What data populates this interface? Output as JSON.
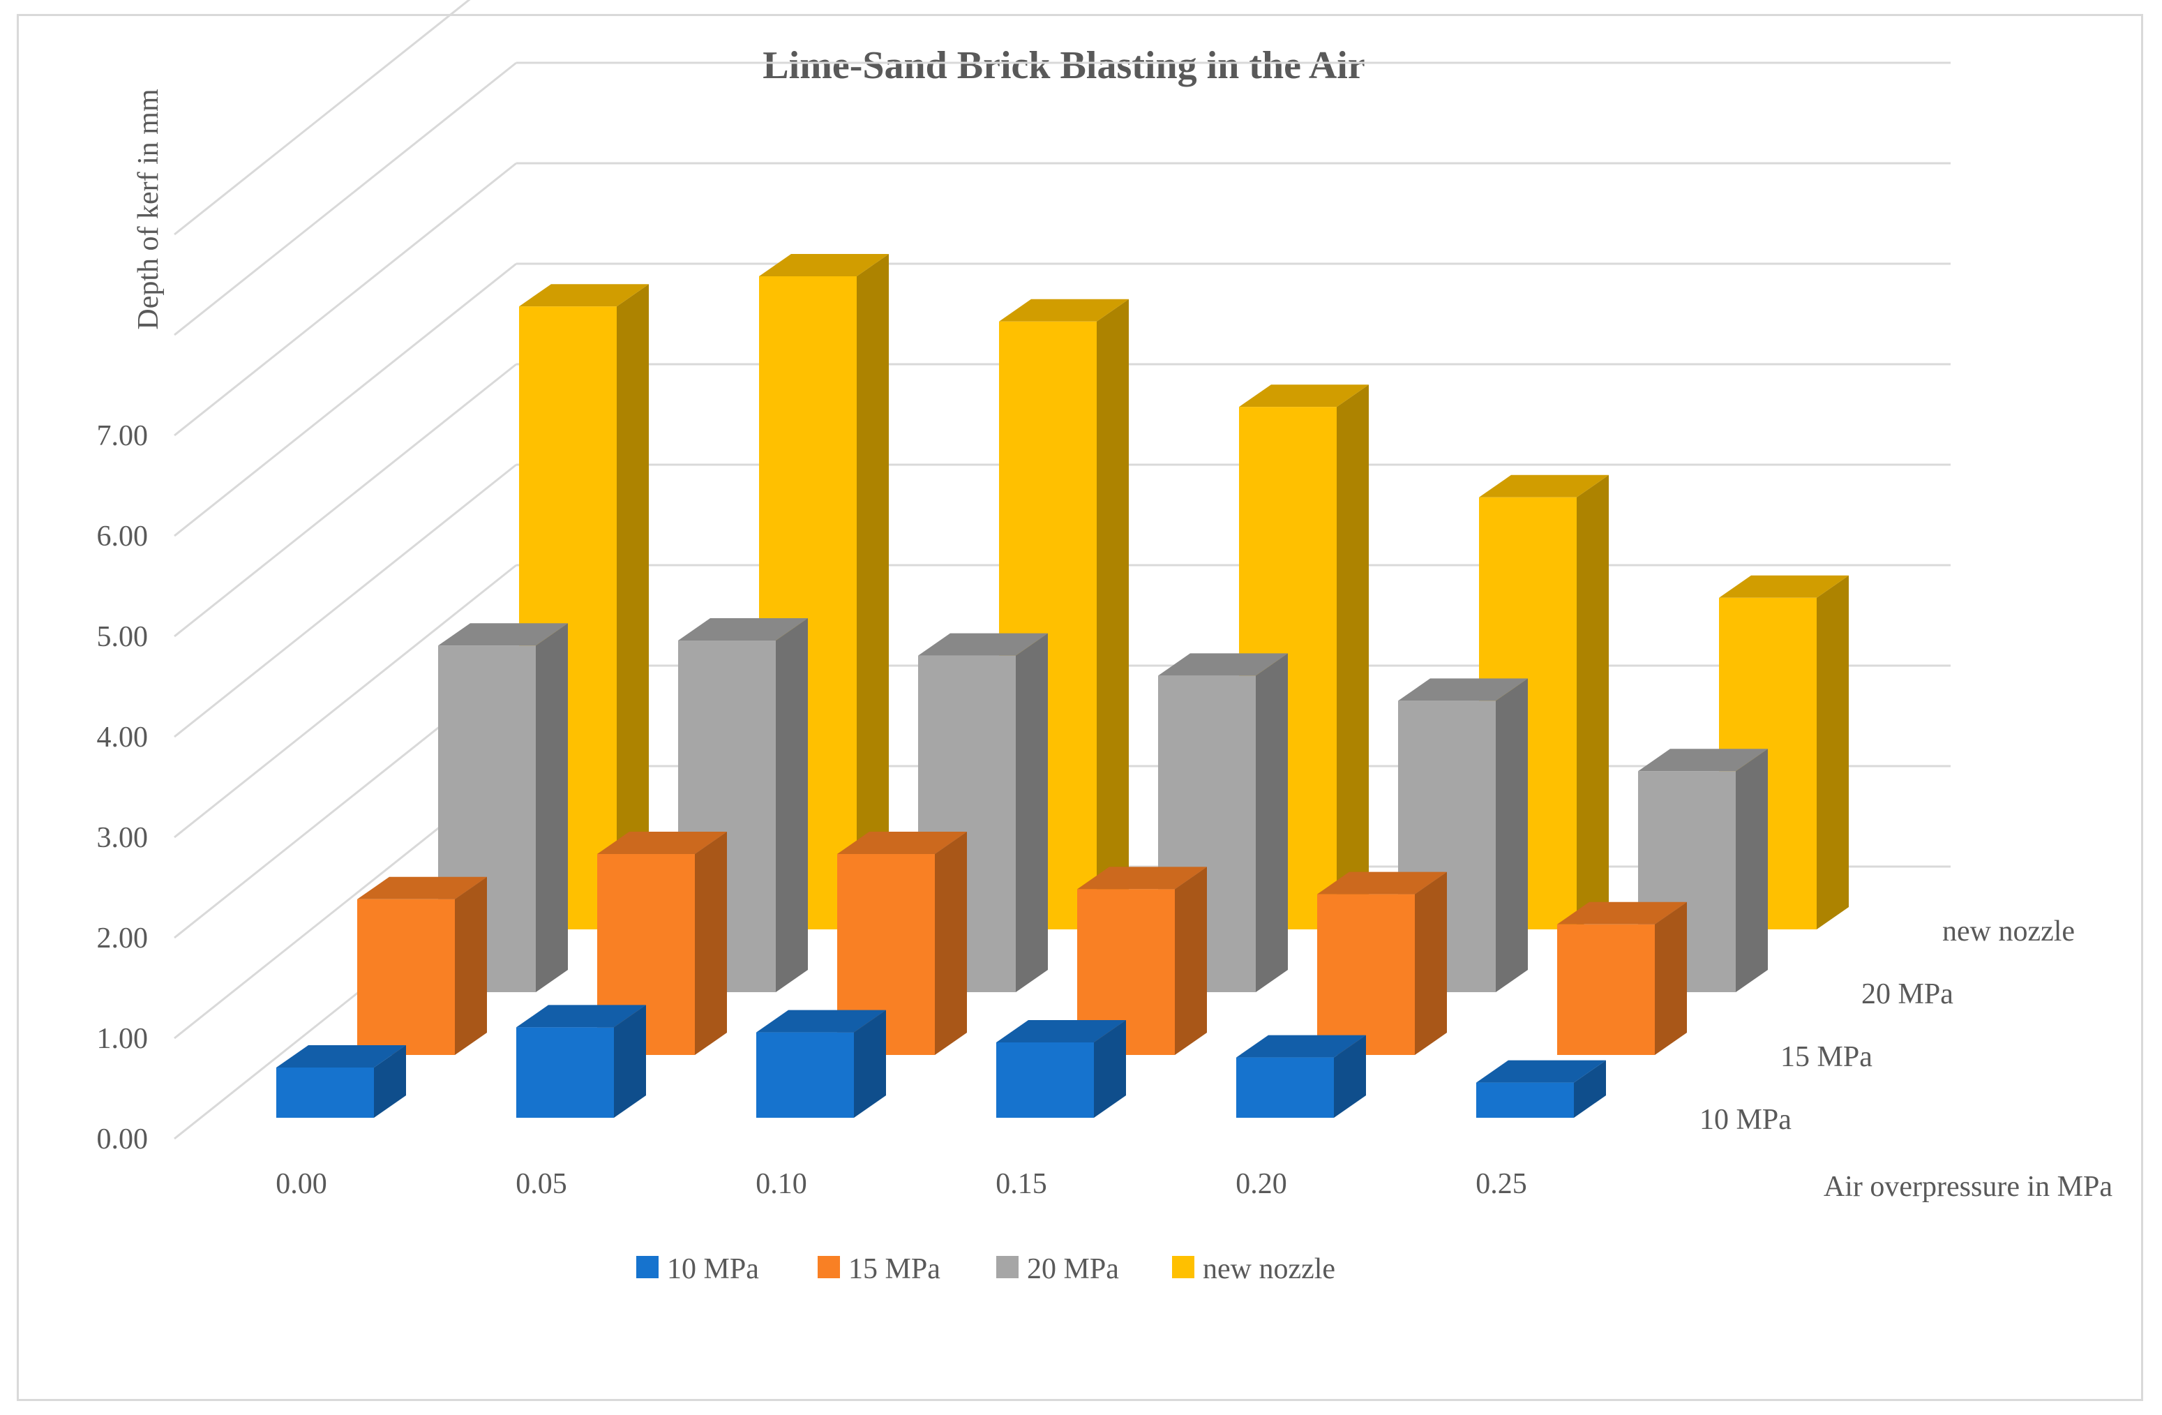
{
  "chart_data": {
    "type": "bar",
    "subtype": "3d-column",
    "title": "Lime-Sand Brick Blasting in the Air",
    "xlabel": "Air overpressure in MPa",
    "ylabel": "Depth of kerf in mm",
    "categories": [
      "0.00",
      "0.05",
      "0.10",
      "0.15",
      "0.20",
      "0.25"
    ],
    "y_ticks": [
      "0.00",
      "1.00",
      "2.00",
      "3.00",
      "4.00",
      "5.00",
      "6.00",
      "7.00"
    ],
    "ylim": [
      0,
      10
    ],
    "grid": true,
    "legend_position": "bottom",
    "series": [
      {
        "name": "10 MPa",
        "values": [
          0.5,
          0.9,
          0.85,
          0.75,
          0.6,
          0.35
        ],
        "color": "#1673CE"
      },
      {
        "name": "15 MPa",
        "values": [
          1.55,
          2.0,
          2.0,
          1.65,
          1.6,
          1.3
        ],
        "color": "#F98024"
      },
      {
        "name": "20 MPa",
        "values": [
          3.45,
          3.5,
          3.35,
          3.15,
          2.9,
          2.2
        ],
        "color": "#A6A6A6"
      },
      {
        "name": "new nozzle",
        "values": [
          6.2,
          6.5,
          6.05,
          5.2,
          4.3,
          3.3
        ],
        "color": "#FFC000"
      }
    ]
  }
}
